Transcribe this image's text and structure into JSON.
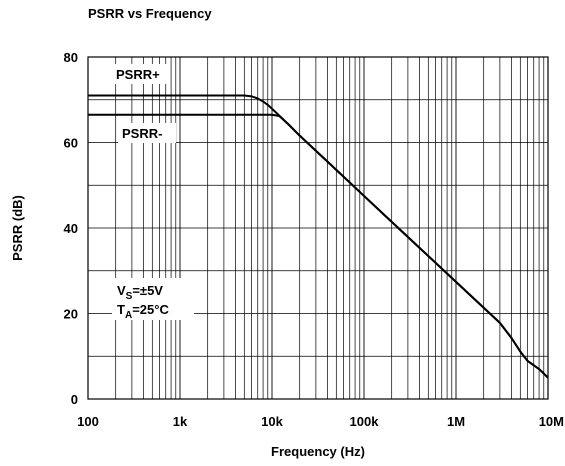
{
  "chart_data": {
    "type": "line",
    "title": "PSRR vs Frequency",
    "xlabel": "Frequency (Hz)",
    "ylabel": "PSRR (dB)",
    "x_scale": "log",
    "xlim": [
      100,
      10000000
    ],
    "ylim": [
      0,
      80
    ],
    "grid": true,
    "x_ticks": [
      {
        "value": 100,
        "label": "100"
      },
      {
        "value": 1000,
        "label": "1k"
      },
      {
        "value": 10000,
        "label": "10k"
      },
      {
        "value": 100000,
        "label": "100k"
      },
      {
        "value": 1000000,
        "label": "1M"
      },
      {
        "value": 10000000,
        "label": "10M"
      }
    ],
    "y_ticks": [
      {
        "value": 0,
        "label": "0"
      },
      {
        "value": 20,
        "label": "20"
      },
      {
        "value": 40,
        "label": "40"
      },
      {
        "value": 60,
        "label": "60"
      },
      {
        "value": 80,
        "label": "80"
      }
    ],
    "series": [
      {
        "name": "PSRR+",
        "x": [
          100,
          1000,
          5000,
          6000,
          7000,
          8000,
          9000,
          10000,
          12000,
          15000,
          20000,
          50000,
          100000,
          300000,
          1000000,
          3000000,
          4000000,
          5000000,
          6000000,
          8000000,
          10000000
        ],
        "y": [
          71,
          71,
          71,
          70.8,
          70.3,
          69.6,
          68.8,
          67.9,
          66.3,
          64.3,
          61.6,
          53.6,
          47.5,
          37.9,
          27.4,
          17.8,
          14.3,
          11.1,
          8.9,
          7.0,
          5.0
        ]
      },
      {
        "name": "PSRR-",
        "x": [
          100,
          1000,
          10000,
          12000,
          15000,
          20000,
          50000,
          100000,
          300000,
          1000000,
          3000000,
          4000000,
          5000000,
          6000000,
          8000000,
          10000000
        ],
        "y": [
          66.5,
          66.5,
          66.5,
          66.2,
          64.3,
          61.6,
          53.6,
          47.5,
          37.9,
          27.4,
          17.8,
          14.3,
          11.1,
          8.9,
          7.0,
          5.0
        ]
      }
    ],
    "annotations": {
      "psrr_plus": "PSRR+",
      "psrr_minus": "PSRR-",
      "vs_main": "V",
      "vs_sub": "S",
      "vs_rest": "=±5V",
      "ta_main": "T",
      "ta_sub": "A",
      "ta_rest": "=25°C"
    }
  }
}
